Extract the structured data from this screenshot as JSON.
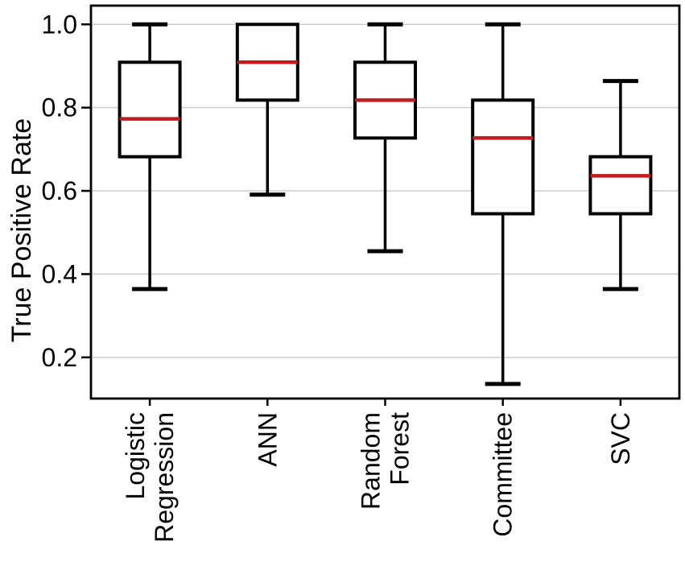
{
  "figure": {
    "background": "#ffffff"
  },
  "chart_data": {
    "type": "boxplot",
    "title": "",
    "xlabel": "",
    "ylabel": "True Positive Rate",
    "categories": [
      "Logistic Regression",
      "ANN",
      "Random Forest",
      "Committee",
      "SVC"
    ],
    "category_label_lines": [
      [
        "Logistic",
        "Regression"
      ],
      [
        "ANN"
      ],
      [
        "Random",
        "Forest"
      ],
      [
        "Committee"
      ],
      [
        "SVC"
      ]
    ],
    "boxes": [
      {
        "label": "Logistic Regression",
        "whisker_low": 0.364,
        "q1": 0.682,
        "median": 0.773,
        "q3": 0.909,
        "whisker_high": 1.0
      },
      {
        "label": "ANN",
        "whisker_low": 0.591,
        "q1": 0.818,
        "median": 0.909,
        "q3": 1.0,
        "whisker_high": 1.0
      },
      {
        "label": "Random Forest",
        "whisker_low": 0.455,
        "q1": 0.727,
        "median": 0.818,
        "q3": 0.909,
        "whisker_high": 1.0
      },
      {
        "label": "Committee",
        "whisker_low": 0.136,
        "q1": 0.545,
        "median": 0.727,
        "q3": 0.818,
        "whisker_high": 1.0
      },
      {
        "label": "SVC",
        "whisker_low": 0.364,
        "q1": 0.545,
        "median": 0.636,
        "q3": 0.682,
        "whisker_high": 0.864
      }
    ],
    "yticks": [
      1.0,
      0.8,
      0.6,
      0.4,
      0.2
    ],
    "ytick_labels": [
      "1.0",
      "0.8",
      "0.6",
      "0.4",
      "0.2"
    ],
    "ylim": [
      0.101,
      1.045
    ],
    "grid": "horizontal",
    "legend": "none",
    "colors": {
      "box_stroke": "#000000",
      "box_fill": "#ffffff",
      "median": "#bf1d1f",
      "grid": "#cccccc",
      "axis": "#000000",
      "text": "#000000"
    }
  }
}
